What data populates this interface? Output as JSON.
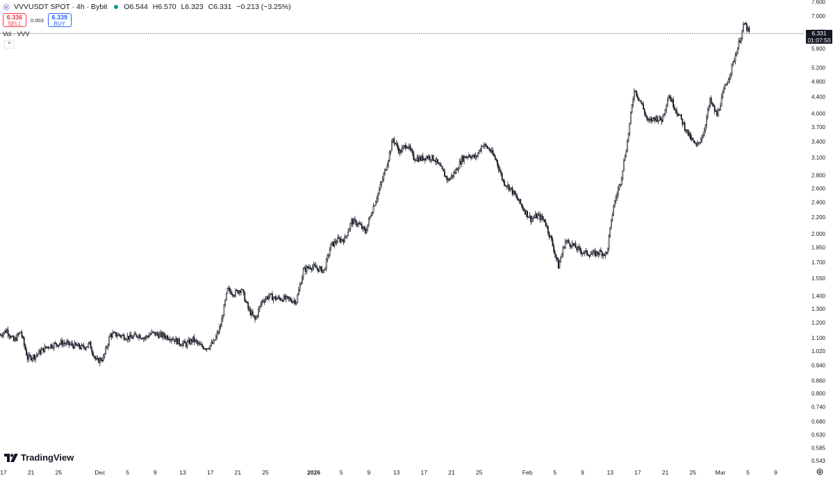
{
  "header": {
    "symbol_title": "VVVUSDT SPOT · 4h · Bybit",
    "open": "O6.544",
    "high": "H6.570",
    "low": "L6.323",
    "close": "C6.331",
    "change": "−0.213 (−3.25%)",
    "status_color": "#089981"
  },
  "trade": {
    "sell_price": "6.336",
    "sell_label": "SELL",
    "spread": "0.003",
    "buy_price": "6.339",
    "buy_label": "BUY"
  },
  "volume_legend": "Vol · VVV",
  "collapse_icon": "chevron-up-icon",
  "current_price": {
    "price": "6.331",
    "countdown": "01:07:50"
  },
  "brand": "TradingView",
  "colors": {
    "candle": "#131722",
    "sell": "#f23645",
    "buy": "#2962ff",
    "status": "#089981"
  },
  "chart_data": {
    "type": "candlestick",
    "y_scale": "log",
    "y_ticks": [
      0.543,
      0.585,
      0.63,
      0.68,
      0.74,
      0.8,
      0.86,
      0.94,
      1.02,
      1.1,
      1.2,
      1.3,
      1.4,
      1.55,
      1.7,
      1.85,
      2.0,
      2.2,
      2.4,
      2.6,
      2.8,
      3.1,
      3.4,
      3.7,
      4.0,
      4.4,
      4.8,
      5.2,
      5.8,
      6.4,
      7.0,
      7.6
    ],
    "y_tick_labels": [
      "0.543",
      "0.585",
      "0.630",
      "0.680",
      "0.740",
      "0.800",
      "0.860",
      "0.940",
      "1.020",
      "1.100",
      "1.200",
      "1.300",
      "1.400",
      "1.550",
      "1.700",
      "1.850",
      "2.000",
      "2.200",
      "2.400",
      "2.600",
      "2.800",
      "3.100",
      "3.400",
      "3.700",
      "4.000",
      "4.400",
      "4.800",
      "5.200",
      "5.800",
      "6.400",
      "7.000",
      "7.600"
    ],
    "x_tick_labels": [
      {
        "label": "17",
        "bold": false,
        "day": 0
      },
      {
        "label": "21",
        "bold": false,
        "day": 4
      },
      {
        "label": "25",
        "bold": false,
        "day": 8
      },
      {
        "label": "Dec",
        "bold": false,
        "day": 14
      },
      {
        "label": "5",
        "bold": false,
        "day": 18
      },
      {
        "label": "9",
        "bold": false,
        "day": 22
      },
      {
        "label": "13",
        "bold": false,
        "day": 26
      },
      {
        "label": "17",
        "bold": false,
        "day": 30
      },
      {
        "label": "21",
        "bold": false,
        "day": 34
      },
      {
        "label": "25",
        "bold": false,
        "day": 38
      },
      {
        "label": "2026",
        "bold": true,
        "day": 45
      },
      {
        "label": "5",
        "bold": false,
        "day": 49
      },
      {
        "label": "9",
        "bold": false,
        "day": 53
      },
      {
        "label": "13",
        "bold": false,
        "day": 57
      },
      {
        "label": "17",
        "bold": false,
        "day": 61
      },
      {
        "label": "21",
        "bold": false,
        "day": 65
      },
      {
        "label": "25",
        "bold": false,
        "day": 69
      },
      {
        "label": "Feb",
        "bold": false,
        "day": 76
      },
      {
        "label": "5",
        "bold": false,
        "day": 80
      },
      {
        "label": "9",
        "bold": false,
        "day": 84
      },
      {
        "label": "13",
        "bold": false,
        "day": 88
      },
      {
        "label": "17",
        "bold": false,
        "day": 92
      },
      {
        "label": "21",
        "bold": false,
        "day": 96
      },
      {
        "label": "25",
        "bold": false,
        "day": 100
      },
      {
        "label": "Mar",
        "bold": false,
        "day": 104
      },
      {
        "label": "5",
        "bold": false,
        "day": 108
      },
      {
        "label": "9",
        "bold": false,
        "day": 112
      }
    ],
    "day_range": [
      0,
      116.7
    ],
    "close_path": [
      [
        0,
        1.12
      ],
      [
        1,
        1.15
      ],
      [
        2,
        1.08
      ],
      [
        3,
        1.14
      ],
      [
        4,
        0.98
      ],
      [
        5,
        0.99
      ],
      [
        6,
        1.02
      ],
      [
        7,
        1.05
      ],
      [
        8,
        1.06
      ],
      [
        9,
        1.07
      ],
      [
        10,
        1.06
      ],
      [
        11,
        1.05
      ],
      [
        12,
        1.04
      ],
      [
        13,
        1.06
      ],
      [
        14,
        0.96
      ],
      [
        15,
        0.98
      ],
      [
        16,
        1.12
      ],
      [
        17,
        1.12
      ],
      [
        18,
        1.11
      ],
      [
        19,
        1.1
      ],
      [
        20,
        1.12
      ],
      [
        21,
        1.1
      ],
      [
        22,
        1.13
      ],
      [
        23,
        1.12
      ],
      [
        24,
        1.11
      ],
      [
        25,
        1.1
      ],
      [
        26,
        1.07
      ],
      [
        27,
        1.06
      ],
      [
        28,
        1.09
      ],
      [
        29,
        1.05
      ],
      [
        30,
        1.04
      ],
      [
        31,
        1.07
      ],
      [
        32,
        1.18
      ],
      [
        33,
        1.45
      ],
      [
        34,
        1.42
      ],
      [
        35,
        1.46
      ],
      [
        36,
        1.3
      ],
      [
        37,
        1.22
      ],
      [
        38,
        1.36
      ],
      [
        39,
        1.4
      ],
      [
        40,
        1.38
      ],
      [
        41,
        1.38
      ],
      [
        42,
        1.37
      ],
      [
        43,
        1.36
      ],
      [
        44,
        1.62
      ],
      [
        45,
        1.66
      ],
      [
        46,
        1.64
      ],
      [
        47,
        1.62
      ],
      [
        48,
        1.87
      ],
      [
        49,
        1.93
      ],
      [
        50,
        1.94
      ],
      [
        51,
        2.15
      ],
      [
        52,
        2.12
      ],
      [
        53,
        2.02
      ],
      [
        54,
        2.3
      ],
      [
        55,
        2.57
      ],
      [
        56,
        2.93
      ],
      [
        57,
        3.45
      ],
      [
        58,
        3.2
      ],
      [
        59,
        3.35
      ],
      [
        60,
        3.1
      ],
      [
        61,
        3.08
      ],
      [
        62,
        3.12
      ],
      [
        63,
        3.08
      ],
      [
        64,
        2.9
      ],
      [
        65,
        2.72
      ],
      [
        66,
        2.85
      ],
      [
        67,
        3.08
      ],
      [
        68,
        3.15
      ],
      [
        69,
        3.1
      ],
      [
        70,
        3.35
      ],
      [
        71,
        3.25
      ],
      [
        72,
        3.05
      ],
      [
        73,
        2.7
      ],
      [
        74,
        2.6
      ],
      [
        75,
        2.45
      ],
      [
        76,
        2.3
      ],
      [
        77,
        2.18
      ],
      [
        78,
        2.22
      ],
      [
        79,
        2.16
      ],
      [
        80,
        1.92
      ],
      [
        81,
        1.66
      ],
      [
        82,
        1.92
      ],
      [
        83,
        1.88
      ],
      [
        84,
        1.82
      ],
      [
        85,
        1.79
      ],
      [
        86,
        1.78
      ],
      [
        87,
        1.8
      ],
      [
        88,
        1.78
      ],
      [
        89,
        2.35
      ],
      [
        90,
        2.7
      ],
      [
        91,
        3.4
      ],
      [
        92,
        4.6
      ],
      [
        93,
        4.25
      ],
      [
        94,
        3.8
      ],
      [
        95,
        3.9
      ],
      [
        96,
        3.85
      ],
      [
        97,
        4.45
      ],
      [
        98,
        4.1
      ],
      [
        99,
        3.8
      ],
      [
        100,
        3.5
      ],
      [
        101,
        3.3
      ],
      [
        102,
        3.55
      ],
      [
        103,
        4.3
      ],
      [
        104,
        3.95
      ],
      [
        105,
        4.55
      ],
      [
        106,
        5.1
      ],
      [
        107,
        5.85
      ],
      [
        108,
        6.7
      ],
      [
        108.7,
        6.331
      ]
    ],
    "current_price": 6.331
  }
}
